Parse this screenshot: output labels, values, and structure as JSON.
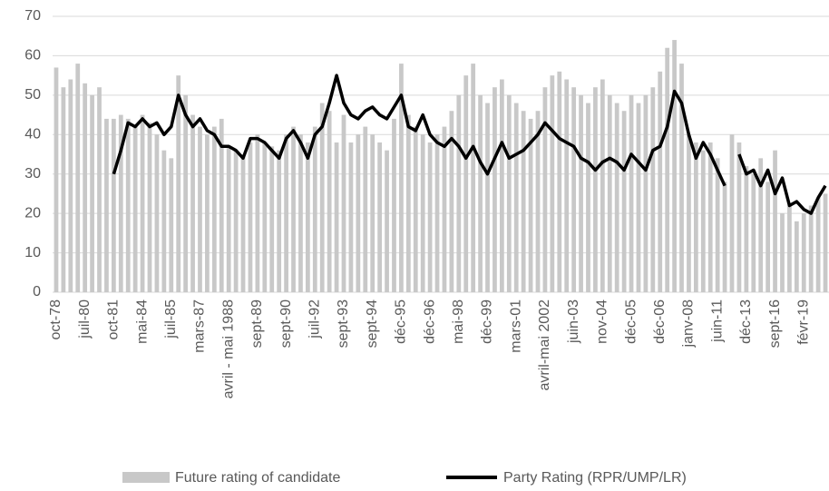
{
  "chart_data": {
    "type": "bar-line",
    "categories": [
      "oct-78",
      null,
      null,
      null,
      "juil-80",
      null,
      null,
      null,
      "oct-81",
      null,
      null,
      null,
      "mai-84",
      null,
      null,
      null,
      "juil-85",
      null,
      null,
      null,
      "mars-87",
      null,
      null,
      null,
      "avril - mai 1988",
      null,
      null,
      null,
      "sept-89",
      null,
      null,
      null,
      "sept-90",
      null,
      null,
      null,
      "juil-92",
      null,
      null,
      null,
      "sept-93",
      null,
      null,
      null,
      "sept-94",
      null,
      null,
      null,
      "déc-95",
      null,
      null,
      null,
      "déc-96",
      null,
      null,
      null,
      "mai-98",
      null,
      null,
      null,
      "déc-99",
      null,
      null,
      null,
      "mars-01",
      null,
      null,
      null,
      "avril-mai 2002",
      null,
      null,
      null,
      "juin-03",
      null,
      null,
      null,
      "nov-04",
      null,
      null,
      null,
      "déc-05",
      null,
      null,
      null,
      "déc-06",
      null,
      null,
      null,
      "janv-08",
      null,
      null,
      null,
      "juin-11",
      null,
      null,
      null,
      "déc-13",
      null,
      null,
      null,
      "sept-16",
      null,
      null,
      null,
      "févr-19",
      null,
      null,
      null
    ],
    "series": [
      {
        "name": "Future rating of candidate",
        "color": "#c8c8c8",
        "kind": "bar",
        "values": [
          57,
          52,
          54,
          58,
          53,
          50,
          52,
          44,
          44,
          45,
          44,
          42,
          45,
          43,
          40,
          36,
          34,
          55,
          50,
          45,
          42,
          40,
          42,
          44,
          37,
          36,
          35,
          38,
          40,
          38,
          37,
          36,
          40,
          42,
          40,
          38,
          42,
          48,
          46,
          38,
          45,
          38,
          40,
          42,
          40,
          38,
          36,
          44,
          58,
          45,
          42,
          40,
          38,
          40,
          42,
          46,
          50,
          55,
          58,
          50,
          48,
          52,
          54,
          50,
          48,
          46,
          44,
          46,
          52,
          55,
          56,
          54,
          52,
          50,
          48,
          52,
          54,
          50,
          48,
          46,
          50,
          48,
          50,
          52,
          56,
          62,
          64,
          58,
          40,
          38,
          36,
          38,
          34,
          28,
          40,
          38,
          32,
          30,
          34,
          28,
          36,
          20,
          22,
          18,
          20,
          22,
          24,
          25
        ]
      },
      {
        "name": "Party Rating (RPR/UMP/LR)",
        "color": "#000000",
        "kind": "line",
        "values": [
          null,
          null,
          null,
          null,
          null,
          null,
          null,
          null,
          30,
          36,
          43,
          42,
          44,
          42,
          43,
          40,
          42,
          50,
          45,
          42,
          44,
          41,
          40,
          37,
          37,
          36,
          34,
          39,
          39,
          38,
          36,
          34,
          39,
          41,
          38,
          34,
          40,
          42,
          48,
          55,
          48,
          45,
          44,
          46,
          47,
          45,
          44,
          47,
          50,
          42,
          41,
          45,
          40,
          38,
          37,
          39,
          37,
          34,
          37,
          33,
          30,
          34,
          38,
          34,
          35,
          36,
          38,
          40,
          43,
          41,
          39,
          38,
          37,
          34,
          33,
          31,
          33,
          34,
          33,
          31,
          35,
          33,
          31,
          36,
          37,
          42,
          51,
          48,
          40,
          34,
          38,
          35,
          31,
          27,
          null,
          35,
          30,
          31,
          27,
          31,
          25,
          29,
          22,
          23,
          21,
          20,
          24,
          27
        ]
      }
    ],
    "ylim": [
      0,
      70
    ],
    "yticks": [
      0,
      10,
      20,
      30,
      40,
      50,
      60,
      70
    ],
    "grid": true
  }
}
